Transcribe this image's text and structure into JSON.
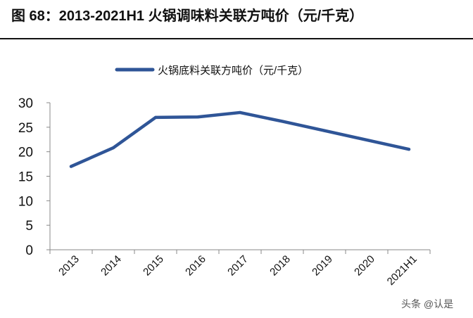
{
  "figure_title": "图 68：2013-2021H1 火锅调味料关联方吨价（元/千克）",
  "watermark": "头条 @认是",
  "chart_data": {
    "type": "line",
    "title": "图 68：2013-2021H1 火锅调味料关联方吨价（元/千克）",
    "xlabel": "",
    "ylabel": "",
    "categories": [
      "2013",
      "2014",
      "2015",
      "2016",
      "2017",
      "2018",
      "2019",
      "2020",
      "2021H1"
    ],
    "series": [
      {
        "name": "火锅底料关联方吨价（元/千克）",
        "color": "#2F5597",
        "values": [
          17.0,
          20.8,
          27.0,
          27.1,
          28.0,
          26.2,
          24.3,
          22.4,
          20.5
        ]
      }
    ],
    "ylim": [
      0,
      30
    ],
    "yticks": [
      0,
      5,
      10,
      15,
      20,
      25,
      30
    ],
    "grid": false,
    "legend": "top-center"
  }
}
